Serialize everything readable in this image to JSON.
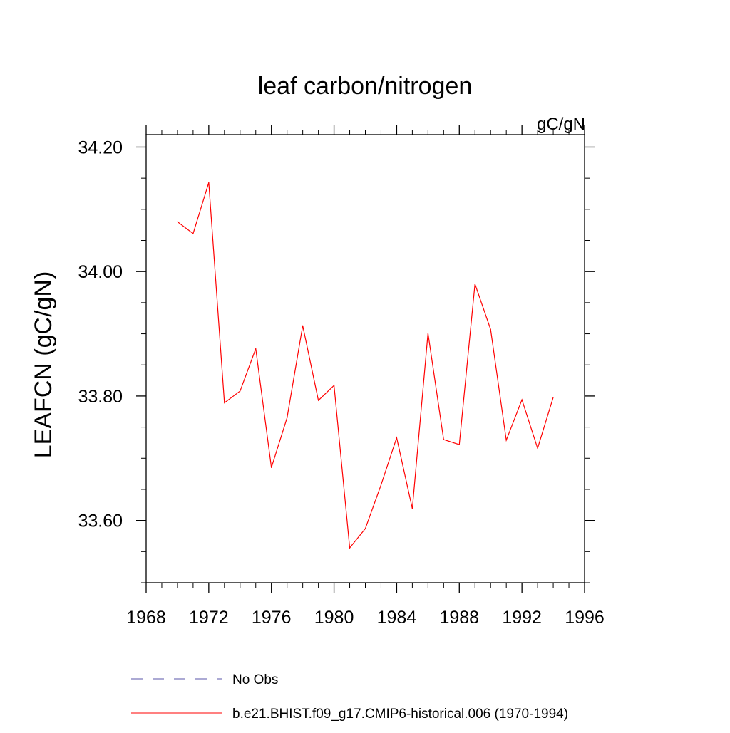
{
  "chart_data": {
    "type": "line",
    "title": "leaf carbon/nitrogen",
    "units_label": "gC/gN",
    "ylabel": "LEAFCN  (gC/gN)",
    "xlabel": "",
    "xlim": [
      1968,
      1996
    ],
    "ylim": [
      33.5,
      34.22
    ],
    "x_ticks": [
      1968,
      1972,
      1976,
      1980,
      1984,
      1988,
      1992,
      1996
    ],
    "x_tick_labels": [
      "1968",
      "1972",
      "1976",
      "1980",
      "1984",
      "1988",
      "1992",
      "1996"
    ],
    "x_minor_step": 1,
    "y_ticks": [
      33.6,
      33.8,
      34.0,
      34.2
    ],
    "y_tick_labels": [
      "33.60",
      "33.80",
      "34.00",
      "34.20"
    ],
    "y_minor_step": 0.05,
    "grid": false,
    "legend_position": "bottom-left",
    "series": [
      {
        "name": "No Obs",
        "color": "#5a55a8",
        "dashed": true,
        "x": [],
        "values": []
      },
      {
        "name": "b.e21.BHIST.f09_g17.CMIP6-historical.006 (1970-1994)",
        "color": "#ff0000",
        "dashed": false,
        "x": [
          1970,
          1971,
          1972,
          1973,
          1974,
          1975,
          1976,
          1977,
          1978,
          1979,
          1980,
          1981,
          1982,
          1983,
          1984,
          1985,
          1986,
          1987,
          1988,
          1989,
          1990,
          1991,
          1992,
          1993,
          1994
        ],
        "values": [
          34.08,
          34.061,
          34.143,
          33.789,
          33.808,
          33.876,
          33.685,
          33.765,
          33.913,
          33.793,
          33.817,
          33.556,
          33.587,
          33.657,
          33.733,
          33.619,
          33.901,
          33.73,
          33.722,
          33.98,
          33.907,
          33.729,
          33.794,
          33.716,
          33.798
        ]
      }
    ]
  }
}
